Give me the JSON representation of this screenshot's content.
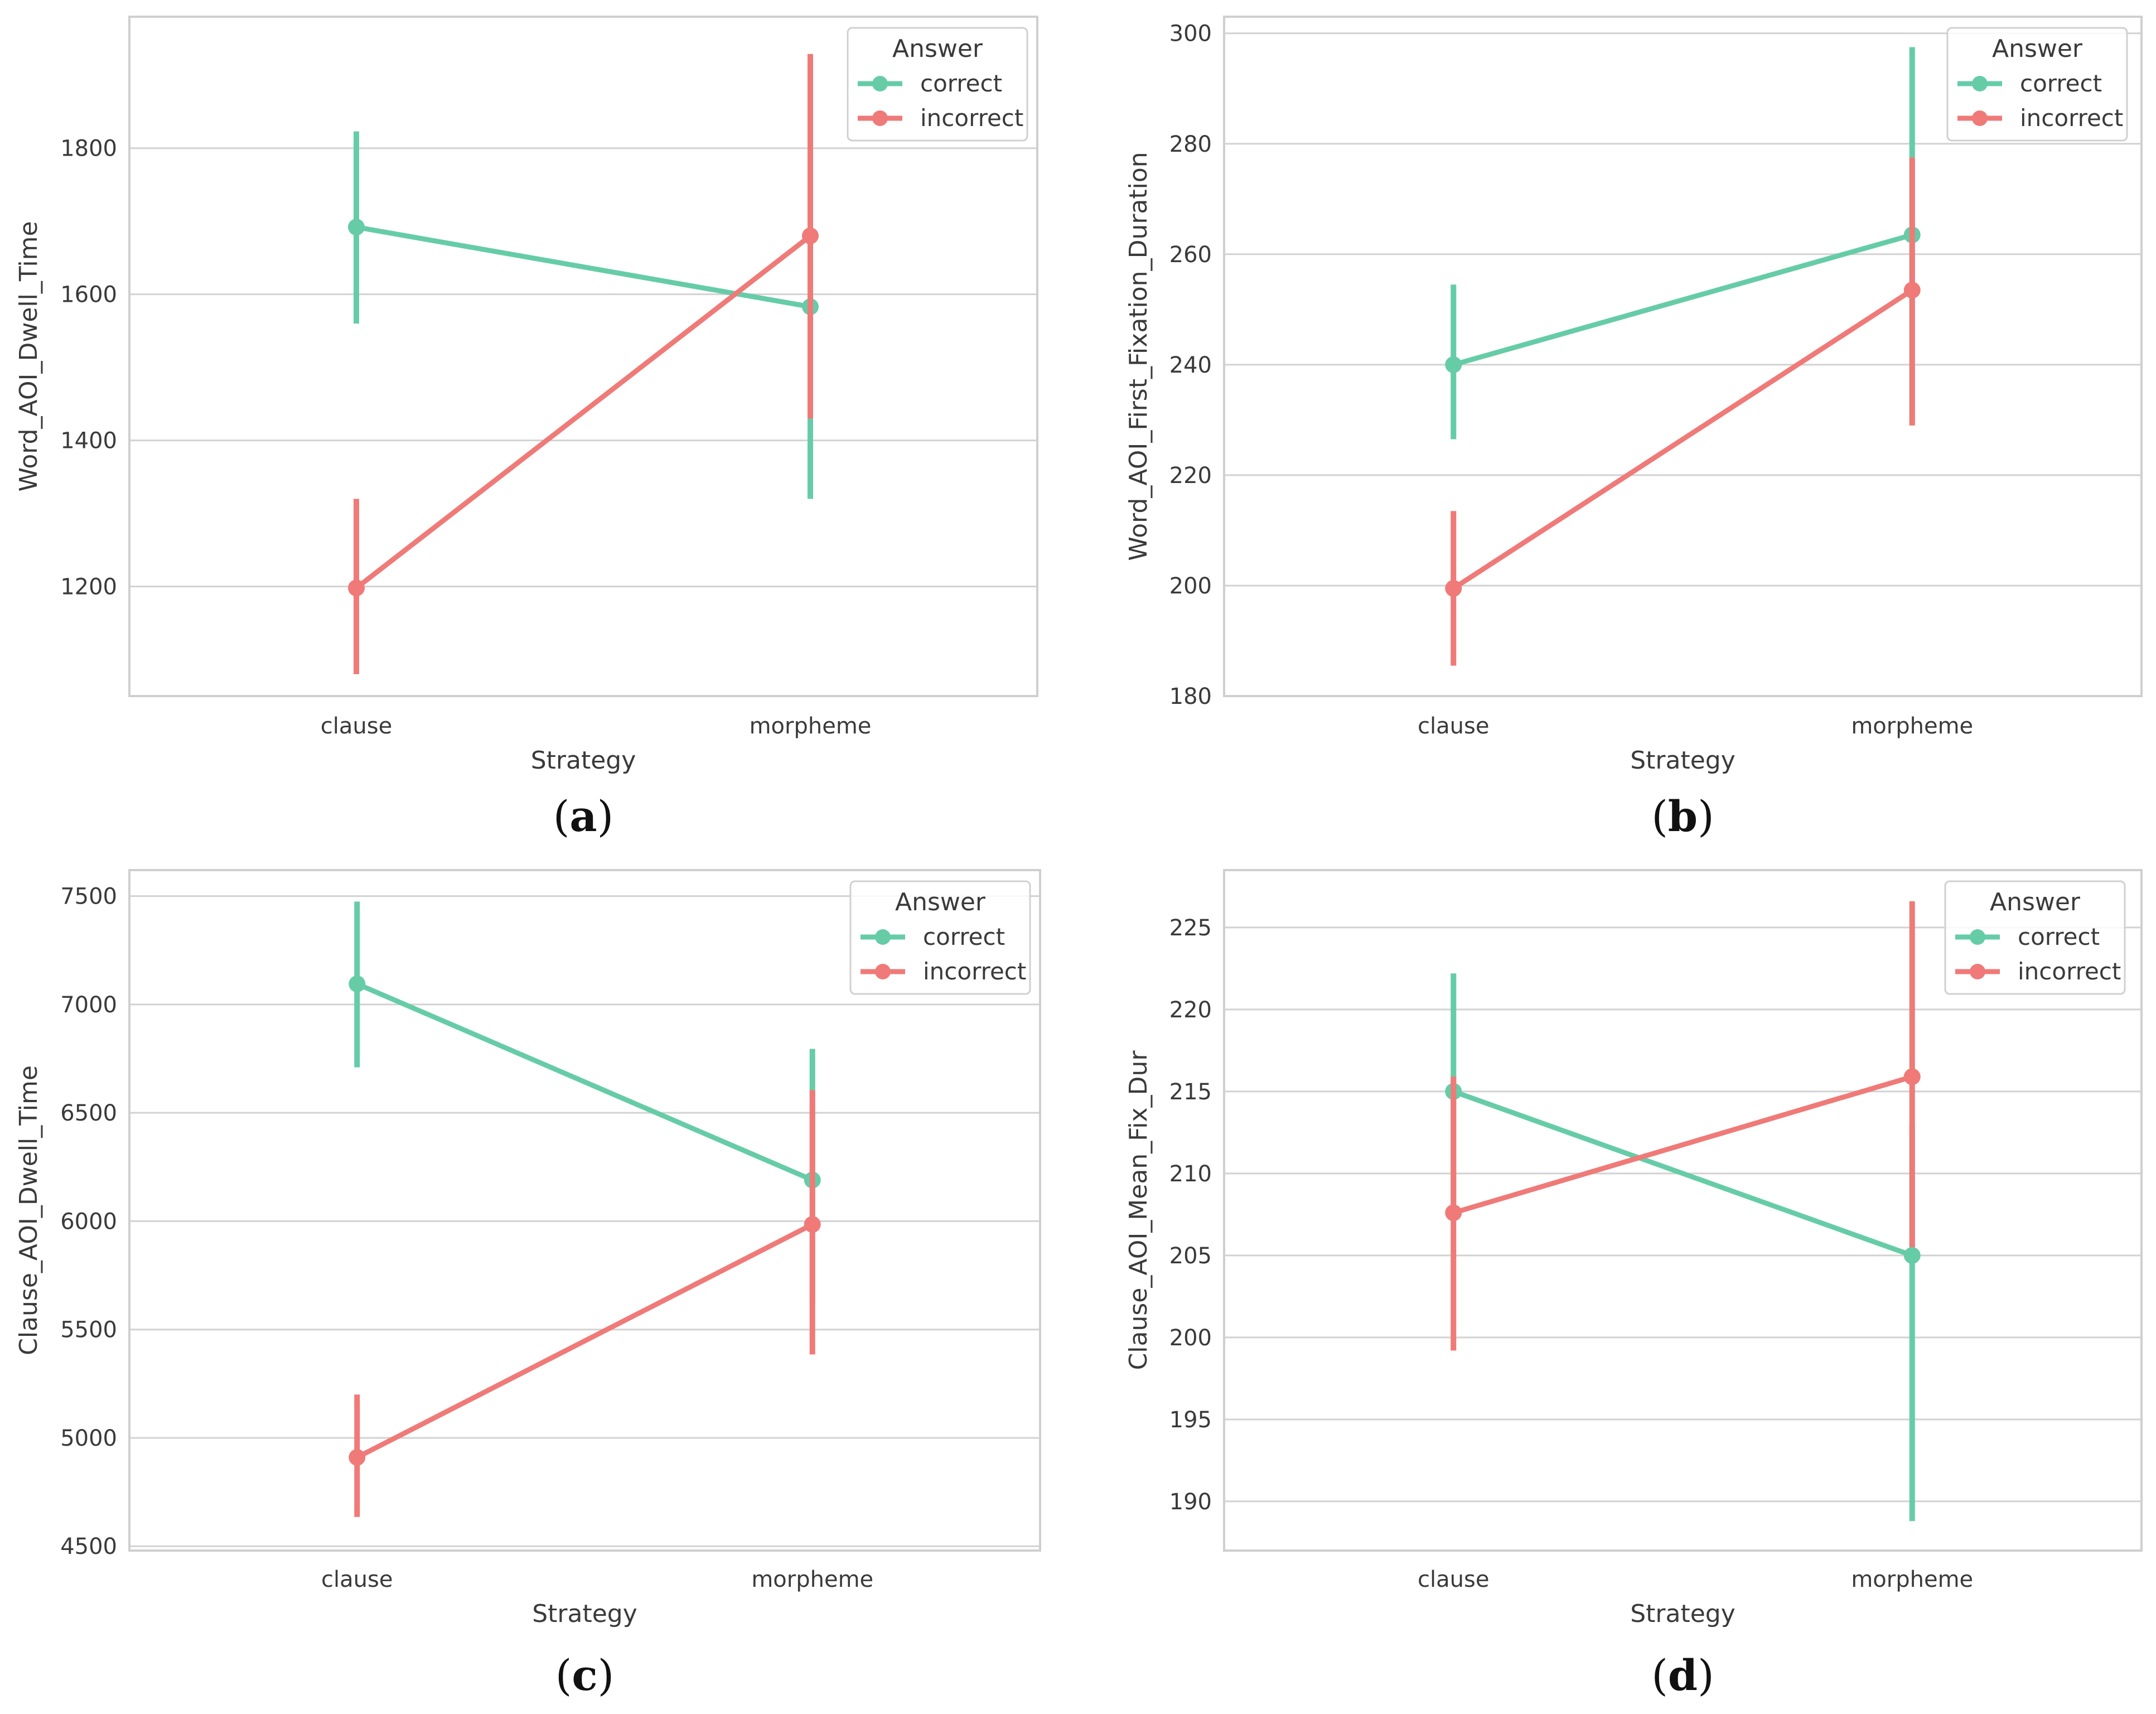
{
  "colors": {
    "correct": "#66cca8",
    "incorrect": "#ef7a78"
  },
  "chart_data": [
    {
      "panel": "a",
      "caption": {
        "open": "(",
        "letter": "a",
        "close": ")"
      },
      "type": "line",
      "xlabel": "Strategy",
      "ylabel": "Word_AOI_Dwell_Time",
      "categories": [
        "clause",
        "morpheme"
      ],
      "ylim": [
        1050,
        1980
      ],
      "yticks": [
        1200,
        1400,
        1600,
        1800
      ],
      "legend": {
        "title": "Answer",
        "placement": "top-right"
      },
      "series": [
        {
          "name": "correct",
          "values": [
            1692,
            1583
          ],
          "ci_low": [
            1560,
            1320
          ],
          "ci_high": [
            1823,
            1822
          ]
        },
        {
          "name": "incorrect",
          "values": [
            1198,
            1680
          ],
          "ci_low": [
            1080,
            1430
          ],
          "ci_high": [
            1320,
            1929
          ]
        }
      ]
    },
    {
      "panel": "b",
      "caption": {
        "open": "(",
        "letter": "b",
        "close": ")"
      },
      "type": "line",
      "xlabel": "Strategy",
      "ylabel": "Word_AOI_First_Fixation_Duration",
      "categories": [
        "clause",
        "morpheme"
      ],
      "ylim": [
        180,
        303
      ],
      "yticks": [
        180,
        200,
        220,
        240,
        260,
        280,
        300
      ],
      "legend": {
        "title": "Answer",
        "placement": "top-right"
      },
      "series": [
        {
          "name": "correct",
          "values": [
            240,
            263.5
          ],
          "ci_low": [
            226.5,
            229
          ],
          "ci_high": [
            254.5,
            297.5
          ]
        },
        {
          "name": "incorrect",
          "values": [
            199.5,
            253.5
          ],
          "ci_low": [
            185.5,
            229
          ],
          "ci_high": [
            213.5,
            277.5
          ]
        }
      ]
    },
    {
      "panel": "c",
      "caption": {
        "open": "(",
        "letter": "c",
        "close": ")"
      },
      "type": "line",
      "xlabel": "Strategy",
      "ylabel": "Clause_AOI_Dwell_Time",
      "categories": [
        "clause",
        "morpheme"
      ],
      "ylim": [
        4480,
        7620
      ],
      "yticks": [
        4500,
        5000,
        5500,
        6000,
        6500,
        7000,
        7500
      ],
      "legend": {
        "title": "Answer",
        "placement": "top-right"
      },
      "series": [
        {
          "name": "correct",
          "values": [
            7095,
            6190
          ],
          "ci_low": [
            6710,
            5620
          ],
          "ci_high": [
            7475,
            6795
          ]
        },
        {
          "name": "incorrect",
          "values": [
            4910,
            5985
          ],
          "ci_low": [
            4635,
            5385
          ],
          "ci_high": [
            5200,
            6605
          ]
        }
      ]
    },
    {
      "panel": "d",
      "caption": {
        "open": "(",
        "letter": "d",
        "close": ")"
      },
      "type": "line",
      "xlabel": "Strategy",
      "ylabel": "Clause_AOI_Mean_Fix_Dur",
      "categories": [
        "clause",
        "morpheme"
      ],
      "ylim": [
        187,
        228.5
      ],
      "yticks": [
        190,
        195,
        200,
        205,
        210,
        215,
        220,
        225
      ],
      "legend": {
        "title": "Answer",
        "placement": "top-right"
      },
      "series": [
        {
          "name": "correct",
          "values": [
            215,
            205
          ],
          "ci_low": [
            208,
            188.8
          ],
          "ci_high": [
            222.2,
            213
          ]
        },
        {
          "name": "incorrect",
          "values": [
            207.6,
            215.9
          ],
          "ci_low": [
            199.2,
            205.5
          ],
          "ci_high": [
            215.9,
            226.6
          ]
        }
      ]
    }
  ]
}
